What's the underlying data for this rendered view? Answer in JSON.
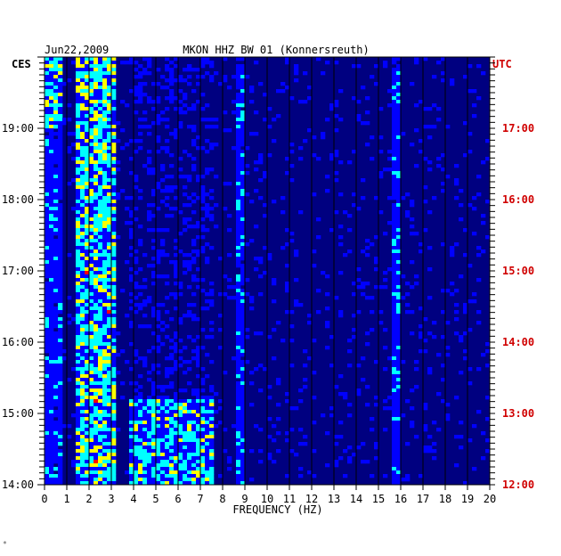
{
  "chart_data": {
    "type": "heatmap",
    "title": "MKON HHZ BW 01 (Konnersreuth)",
    "date": "Jun22,2009",
    "xlabel": "FREQUENCY (HZ)",
    "xlim": [
      0,
      20
    ],
    "x_ticks": [
      "0",
      "1",
      "2",
      "3",
      "4",
      "5",
      "6",
      "7",
      "8",
      "9",
      "10",
      "11",
      "12",
      "13",
      "14",
      "15",
      "16",
      "17",
      "18",
      "19",
      "20"
    ],
    "left_axis": {
      "label": "CES",
      "ticks": [
        "19:00",
        "18:00",
        "17:00",
        "16:00",
        "15:00",
        "14:00"
      ],
      "hours": [
        19,
        18,
        17,
        16,
        15,
        14
      ]
    },
    "right_axis": {
      "label": "UTC",
      "ticks": [
        "17:00",
        "16:00",
        "15:00",
        "14:00",
        "13:00",
        "12:00"
      ],
      "hours": [
        17,
        16,
        15,
        14,
        13,
        12
      ]
    },
    "time_range_ces": [
      "14:00",
      "20:00"
    ],
    "energy_bands_hz": [
      {
        "from": 0.0,
        "to": 0.8,
        "level": "high",
        "note": "strongest near top"
      },
      {
        "from": 1.5,
        "to": 3.1,
        "level": "high",
        "note": "continuous strong band"
      },
      {
        "from": 3.8,
        "to": 7.5,
        "level": "medium",
        "note": "burst between 14:00 and 15:00"
      },
      {
        "from": 8.7,
        "to": 9.0,
        "level": "medium",
        "note": "intermittent line"
      },
      {
        "from": 15.7,
        "to": 15.9,
        "level": "medium",
        "note": "narrow spectral line"
      }
    ],
    "grid": true,
    "colormap": [
      "#000080",
      "#0000ff",
      "#00ffff",
      "#ffff00",
      "#ff0000"
    ]
  },
  "stamp": "*"
}
